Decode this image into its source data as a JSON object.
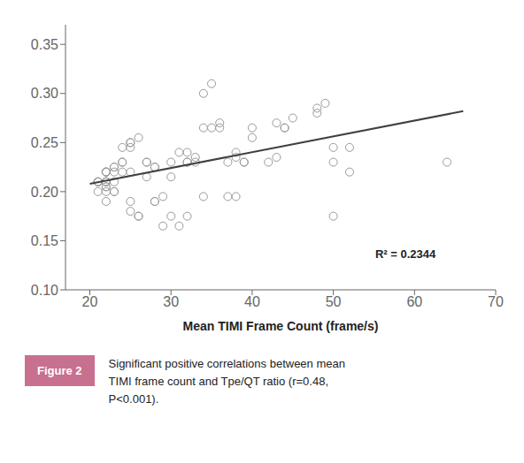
{
  "chart_data": {
    "type": "scatter",
    "xlabel": "Mean TIMI Frame Count (frame/s)",
    "xlim": [
      17,
      70
    ],
    "ylim": [
      0.1,
      0.37
    ],
    "xticks": [
      20,
      30,
      40,
      50,
      60,
      70
    ],
    "yticks": [
      {
        "value": 0.1,
        "label": "0.10"
      },
      0.15,
      {
        "value": 0.2,
        "label": "0.20"
      },
      0.25,
      {
        "value": 0.3,
        "label": "0.30"
      },
      0.35
    ],
    "grid": false,
    "annotations": [
      "R² = 0.2344"
    ],
    "caption": {
      "label": "Figure 2",
      "text": "Significant positive correlations between mean\nTIMI frame count and Tpe/QT ratio (r=0.48,\nP<0.001).",
      "color": "#C87090"
    },
    "series": [
      {
        "type": "scatter",
        "color": "#999999",
        "marker": "circle",
        "x": [
          21,
          21,
          21,
          21,
          21,
          22,
          22,
          22,
          22,
          22,
          22,
          22,
          22,
          22,
          22,
          22,
          22,
          23,
          23,
          23,
          23,
          23,
          23,
          24,
          24,
          24,
          24,
          25,
          25,
          25,
          25,
          25,
          25,
          26,
          26,
          26,
          27,
          27,
          27,
          28,
          28,
          28,
          28,
          29,
          29,
          30,
          30,
          30,
          31,
          31,
          32,
          32,
          32,
          32,
          33,
          33,
          34,
          34,
          34,
          35,
          35,
          36,
          36,
          37,
          37,
          38,
          38,
          38,
          39,
          39,
          40,
          40,
          42,
          43,
          43,
          44,
          44,
          45,
          48,
          48,
          49,
          50,
          50,
          50,
          52,
          52,
          64
        ],
        "values": [
          0.21,
          0.2,
          0.21,
          0.21,
          0.21,
          0.205,
          0.205,
          0.21,
          0.21,
          0.21,
          0.21,
          0.22,
          0.22,
          0.22,
          0.22,
          0.19,
          0.2,
          0.22,
          0.225,
          0.225,
          0.21,
          0.2,
          0.2,
          0.245,
          0.23,
          0.23,
          0.22,
          0.25,
          0.25,
          0.245,
          0.22,
          0.19,
          0.18,
          0.255,
          0.175,
          0.175,
          0.23,
          0.23,
          0.215,
          0.225,
          0.225,
          0.19,
          0.19,
          0.195,
          0.165,
          0.23,
          0.215,
          0.175,
          0.24,
          0.165,
          0.24,
          0.23,
          0.23,
          0.175,
          0.23,
          0.235,
          0.3,
          0.265,
          0.195,
          0.31,
          0.265,
          0.27,
          0.265,
          0.23,
          0.195,
          0.24,
          0.235,
          0.195,
          0.23,
          0.23,
          0.265,
          0.255,
          0.23,
          0.235,
          0.27,
          0.265,
          0.265,
          0.275,
          0.285,
          0.28,
          0.29,
          0.245,
          0.23,
          0.175,
          0.245,
          0.22,
          0.23
        ]
      },
      {
        "type": "line",
        "color": "#404040",
        "x": [
          20,
          66
        ],
        "values": [
          0.208,
          0.282
        ]
      }
    ]
  }
}
